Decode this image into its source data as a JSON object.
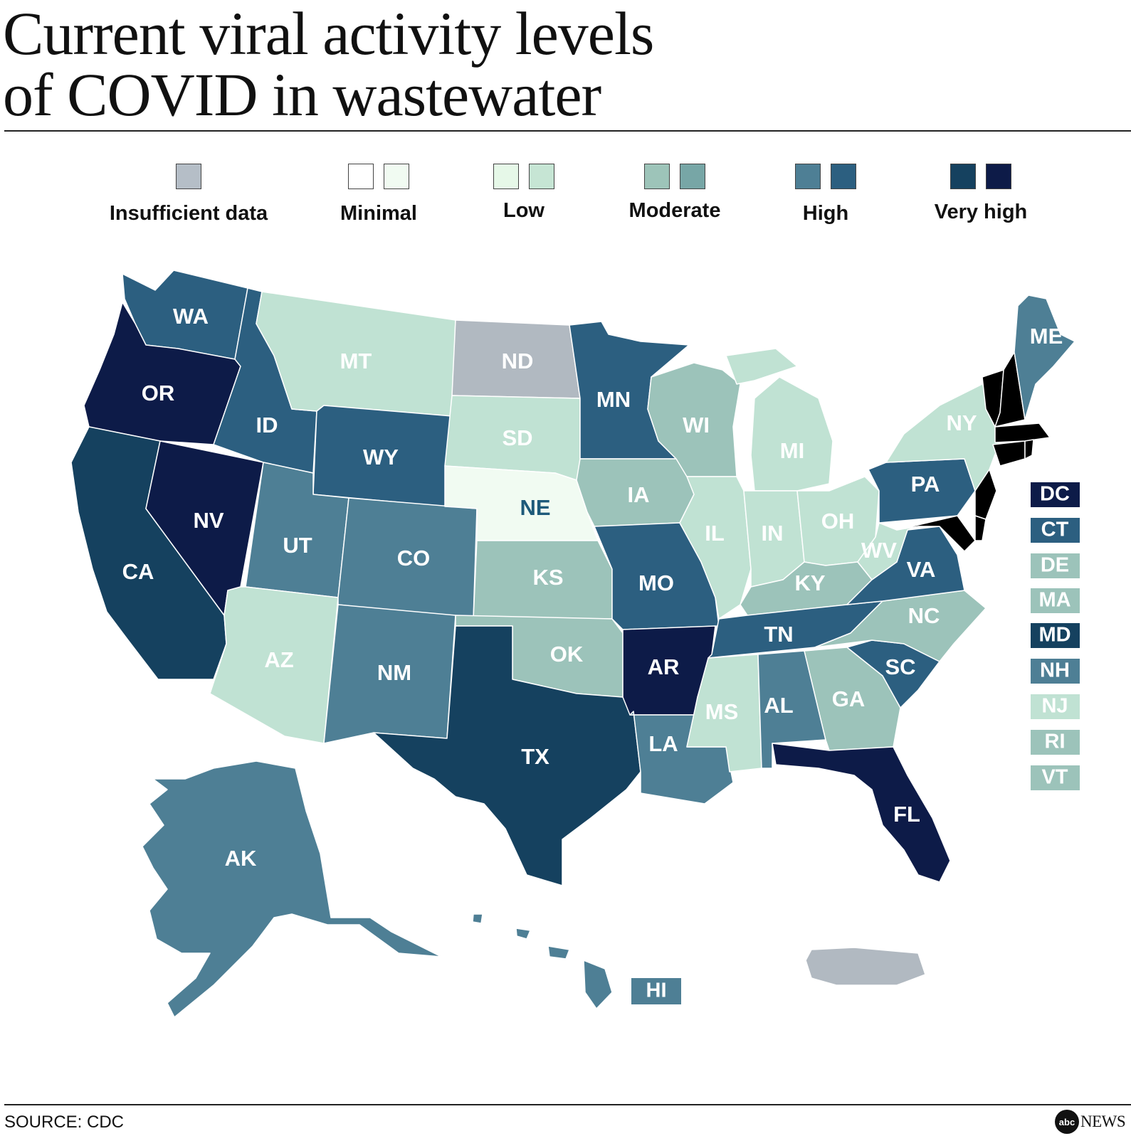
{
  "title": {
    "line1": "Current viral activity levels",
    "line2": "of COVID in wastewater"
  },
  "colors": {
    "insufficient": "#b1b9c1",
    "minimal": "#f1fbf2",
    "low": "#c0e2d3",
    "moderate": "#9cc3ba",
    "high": "#4e7f95",
    "very_high_a": "#15415f",
    "very_high_b": "#0d1b48",
    "high_b": "#2c5f80"
  },
  "legend": [
    {
      "label": "Insufficient data",
      "swatches": [
        "#b5bec7"
      ]
    },
    {
      "label": "Minimal",
      "swatches": [
        "#ffffff",
        "#f1fbf2"
      ]
    },
    {
      "label": "Low",
      "swatches": [
        "#e6f8e8",
        "#c6e5d4"
      ]
    },
    {
      "label": "Moderate",
      "swatches": [
        "#9dc4b9",
        "#77a6a6"
      ]
    },
    {
      "label": "High",
      "swatches": [
        "#4e7f95",
        "#2c5f80"
      ]
    },
    {
      "label": "Very high",
      "swatches": [
        "#15415f",
        "#0d1b48"
      ]
    }
  ],
  "states": {
    "WA": {
      "label": "WA",
      "level": "High"
    },
    "OR": {
      "label": "OR",
      "level": "Very high"
    },
    "CA": {
      "label": "CA",
      "level": "Very high"
    },
    "NV": {
      "label": "NV",
      "level": "Very high"
    },
    "ID": {
      "label": "ID",
      "level": "High"
    },
    "MT": {
      "label": "MT",
      "level": "Low"
    },
    "WY": {
      "label": "WY",
      "level": "High"
    },
    "UT": {
      "label": "UT",
      "level": "High"
    },
    "AZ": {
      "label": "AZ",
      "level": "Low"
    },
    "CO": {
      "label": "CO",
      "level": "High"
    },
    "NM": {
      "label": "NM",
      "level": "High"
    },
    "ND": {
      "label": "ND",
      "level": "Insufficient data"
    },
    "SD": {
      "label": "SD",
      "level": "Low"
    },
    "NE": {
      "label": "NE",
      "level": "Minimal"
    },
    "KS": {
      "label": "KS",
      "level": "Moderate"
    },
    "OK": {
      "label": "OK",
      "level": "Moderate"
    },
    "TX": {
      "label": "TX",
      "level": "Very high"
    },
    "MN": {
      "label": "MN",
      "level": "High"
    },
    "IA": {
      "label": "IA",
      "level": "Moderate"
    },
    "MO": {
      "label": "MO",
      "level": "High"
    },
    "AR": {
      "label": "AR",
      "level": "Very high"
    },
    "LA": {
      "label": "LA",
      "level": "High"
    },
    "WI": {
      "label": "WI",
      "level": "Moderate"
    },
    "IL": {
      "label": "IL",
      "level": "Low"
    },
    "MI": {
      "label": "MI",
      "level": "Low"
    },
    "IN": {
      "label": "IN",
      "level": "Low"
    },
    "OH": {
      "label": "OH",
      "level": "Low"
    },
    "KY": {
      "label": "KY",
      "level": "Moderate"
    },
    "TN": {
      "label": "TN",
      "level": "High"
    },
    "MS": {
      "label": "MS",
      "level": "Low"
    },
    "AL": {
      "label": "AL",
      "level": "High"
    },
    "GA": {
      "label": "GA",
      "level": "Moderate"
    },
    "FL": {
      "label": "FL",
      "level": "Very high"
    },
    "SC": {
      "label": "SC",
      "level": "High"
    },
    "NC": {
      "label": "NC",
      "level": "Moderate"
    },
    "VA": {
      "label": "VA",
      "level": "High"
    },
    "WV": {
      "label": "WV",
      "level": "Low"
    },
    "PA": {
      "label": "PA",
      "level": "High"
    },
    "NY": {
      "label": "NY",
      "level": "Low"
    },
    "ME": {
      "label": "ME",
      "level": "High"
    },
    "AK": {
      "label": "AK",
      "level": "High"
    },
    "HI": {
      "label": "HI",
      "level": "High"
    },
    "PR": {
      "level": "Insufficient data"
    }
  },
  "small_states": [
    {
      "label": "DC",
      "color": "#0d1b48"
    },
    {
      "label": "CT",
      "color": "#2c5f80"
    },
    {
      "label": "DE",
      "color": "#9cc3ba"
    },
    {
      "label": "MA",
      "color": "#9cc3ba"
    },
    {
      "label": "MD",
      "color": "#15415f"
    },
    {
      "label": "NH",
      "color": "#4e7f95"
    },
    {
      "label": "NJ",
      "color": "#c0e2d3"
    },
    {
      "label": "RI",
      "color": "#9cc3ba"
    },
    {
      "label": "VT",
      "color": "#9cc3ba"
    }
  ],
  "hi_box": {
    "label": "HI",
    "color": "#4e7f95"
  },
  "footer": {
    "source": "SOURCE: CDC",
    "logo_mark": "abc",
    "logo_text": "NEWS"
  }
}
